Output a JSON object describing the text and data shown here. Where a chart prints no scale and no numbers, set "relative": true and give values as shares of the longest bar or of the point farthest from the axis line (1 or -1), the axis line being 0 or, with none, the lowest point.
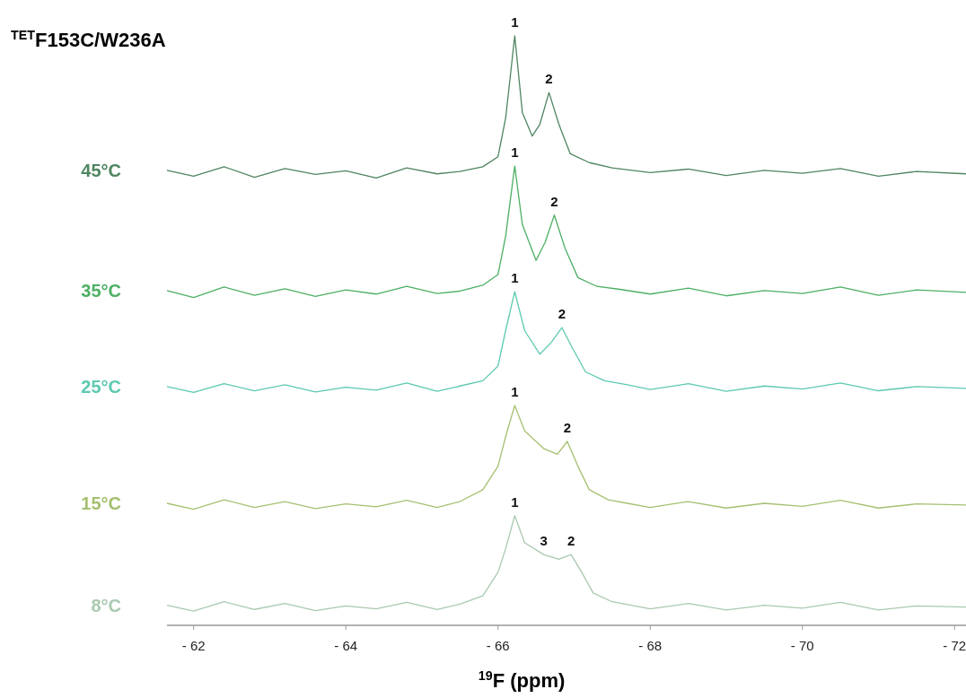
{
  "chart_data": {
    "type": "line",
    "relative": true,
    "title": "$^{TET}$F153C/W236A",
    "xlabel": "$^{19}$F (ppm)",
    "xlim": [
      -61.65,
      -72.15
    ],
    "xticks": [
      {
        "value": -62,
        "label": "- 62"
      },
      {
        "value": -64,
        "label": "- 64"
      },
      {
        "value": -66,
        "label": "- 66"
      },
      {
        "value": -68,
        "label": "- 68"
      },
      {
        "value": -70,
        "label": "- 70"
      },
      {
        "value": -72,
        "label": "- 72"
      }
    ],
    "series": [
      {
        "name": "45°C",
        "color": "#4e8560",
        "x": [
          -61.65,
          -62.0,
          -62.4,
          -62.8,
          -63.2,
          -63.6,
          -64.0,
          -64.4,
          -64.8,
          -65.2,
          -65.5,
          -65.8,
          -66.0,
          -66.1,
          -66.22,
          -66.32,
          -66.45,
          -66.55,
          -66.67,
          -66.8,
          -66.95,
          -67.2,
          -67.5,
          -68.0,
          -68.5,
          -69.0,
          -69.5,
          -70.0,
          -70.5,
          -71.0,
          -71.5,
          -72.15
        ],
        "values": [
          0.772,
          0.762,
          0.778,
          0.76,
          0.775,
          0.765,
          0.771,
          0.759,
          0.776,
          0.766,
          0.77,
          0.778,
          0.795,
          0.86,
          1.0,
          0.87,
          0.83,
          0.85,
          0.904,
          0.85,
          0.8,
          0.785,
          0.776,
          0.768,
          0.774,
          0.763,
          0.772,
          0.767,
          0.775,
          0.762,
          0.77,
          0.766
        ]
      },
      {
        "name": "35°C",
        "color": "#4caf64",
        "x": [
          -61.65,
          -62.0,
          -62.4,
          -62.8,
          -63.2,
          -63.6,
          -64.0,
          -64.4,
          -64.8,
          -65.2,
          -65.5,
          -65.8,
          -66.0,
          -66.1,
          -66.22,
          -66.32,
          -66.5,
          -66.62,
          -66.74,
          -66.88,
          -67.05,
          -67.3,
          -67.6,
          -68.0,
          -68.5,
          -69.0,
          -69.5,
          -70.0,
          -70.5,
          -71.0,
          -71.5,
          -72.15
        ],
        "values": [
          0.568,
          0.556,
          0.574,
          0.56,
          0.571,
          0.558,
          0.569,
          0.562,
          0.575,
          0.563,
          0.567,
          0.577,
          0.595,
          0.66,
          0.779,
          0.68,
          0.619,
          0.65,
          0.696,
          0.64,
          0.59,
          0.575,
          0.57,
          0.562,
          0.572,
          0.559,
          0.568,
          0.563,
          0.574,
          0.56,
          0.569,
          0.565
        ]
      },
      {
        "name": "25°C",
        "color": "#5cc9b0",
        "x": [
          -61.65,
          -62.0,
          -62.4,
          -62.8,
          -63.2,
          -63.6,
          -64.0,
          -64.4,
          -64.8,
          -65.2,
          -65.5,
          -65.8,
          -66.0,
          -66.1,
          -66.22,
          -66.35,
          -66.55,
          -66.7,
          -66.84,
          -66.98,
          -67.15,
          -67.4,
          -67.7,
          -68.0,
          -68.5,
          -69.0,
          -69.5,
          -70.0,
          -70.5,
          -71.0,
          -71.5,
          -72.15
        ],
        "values": [
          0.405,
          0.395,
          0.41,
          0.398,
          0.408,
          0.396,
          0.404,
          0.399,
          0.411,
          0.397,
          0.406,
          0.415,
          0.44,
          0.5,
          0.566,
          0.5,
          0.46,
          0.48,
          0.505,
          0.47,
          0.43,
          0.415,
          0.408,
          0.4,
          0.41,
          0.397,
          0.406,
          0.401,
          0.411,
          0.398,
          0.405,
          0.402
        ]
      },
      {
        "name": "15°C",
        "color": "#a5c070",
        "x": [
          -61.65,
          -62.0,
          -62.4,
          -62.8,
          -63.2,
          -63.6,
          -64.0,
          -64.4,
          -64.8,
          -65.2,
          -65.5,
          -65.8,
          -66.0,
          -66.1,
          -66.22,
          -66.35,
          -66.6,
          -66.78,
          -66.91,
          -67.05,
          -67.2,
          -67.45,
          -67.7,
          -68.0,
          -68.5,
          -69.0,
          -69.5,
          -70.0,
          -70.5,
          -71.0,
          -71.5,
          -72.15
        ],
        "values": [
          0.207,
          0.197,
          0.213,
          0.2,
          0.21,
          0.198,
          0.206,
          0.201,
          0.212,
          0.2,
          0.21,
          0.23,
          0.27,
          0.32,
          0.373,
          0.33,
          0.3,
          0.29,
          0.312,
          0.27,
          0.23,
          0.213,
          0.207,
          0.2,
          0.21,
          0.199,
          0.207,
          0.202,
          0.212,
          0.199,
          0.206,
          0.204
        ]
      },
      {
        "name": "8°C",
        "color": "#a9c9b0",
        "x": [
          -61.65,
          -62.0,
          -62.4,
          -62.8,
          -63.2,
          -63.6,
          -64.0,
          -64.4,
          -64.8,
          -65.2,
          -65.5,
          -65.8,
          -66.0,
          -66.1,
          -66.22,
          -66.35,
          -66.6,
          -66.8,
          -66.96,
          -67.1,
          -67.25,
          -67.5,
          -67.75,
          -68.0,
          -68.5,
          -69.0,
          -69.5,
          -70.0,
          -70.5,
          -71.0,
          -71.5,
          -72.15
        ],
        "values": [
          0.034,
          0.024,
          0.04,
          0.027,
          0.037,
          0.025,
          0.033,
          0.028,
          0.039,
          0.027,
          0.036,
          0.05,
          0.09,
          0.13,
          0.186,
          0.14,
          0.12,
          0.112,
          0.12,
          0.09,
          0.055,
          0.04,
          0.034,
          0.028,
          0.037,
          0.026,
          0.034,
          0.029,
          0.039,
          0.026,
          0.033,
          0.031
        ]
      }
    ],
    "annotations": [
      {
        "text": "1",
        "x": -66.22,
        "y": 1.0
      },
      {
        "text": "2",
        "x": -66.67,
        "y": 0.904
      },
      {
        "text": "1",
        "x": -66.22,
        "y": 0.779
      },
      {
        "text": "2",
        "x": -66.74,
        "y": 0.696
      },
      {
        "text": "1",
        "x": -66.22,
        "y": 0.566
      },
      {
        "text": "2",
        "x": -66.84,
        "y": 0.505
      },
      {
        "text": "1",
        "x": -66.22,
        "y": 0.373
      },
      {
        "text": "2",
        "x": -66.91,
        "y": 0.312
      },
      {
        "text": "1",
        "x": -66.22,
        "y": 0.186
      },
      {
        "text": "3",
        "x": -66.6,
        "y": 0.12
      },
      {
        "text": "2",
        "x": -66.96,
        "y": 0.12
      }
    ]
  }
}
